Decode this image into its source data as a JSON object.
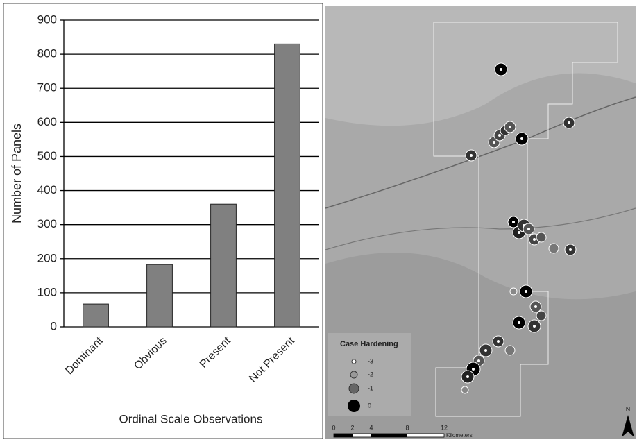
{
  "chart_data": {
    "type": "bar",
    "x_label": "Ordinal Scale Observations",
    "y_label": "Number of Panels",
    "categories": [
      "Dominant",
      "Obvious",
      "Present",
      "Not Present"
    ],
    "values": [
      67,
      183,
      360,
      830
    ],
    "color": "#808080",
    "ylim": [
      0,
      900
    ],
    "yticks": [
      0,
      100,
      200,
      300,
      400,
      500,
      600,
      700,
      800,
      900
    ],
    "grid": true
  },
  "map": {
    "legend": {
      "title": "Case Hardening",
      "items": [
        "-3",
        "-2",
        "-1",
        "0"
      ]
    },
    "scale": {
      "ticks": [
        "0",
        "2",
        "4",
        "8",
        "12"
      ],
      "unit": "Kilometers"
    },
    "north": "N"
  }
}
